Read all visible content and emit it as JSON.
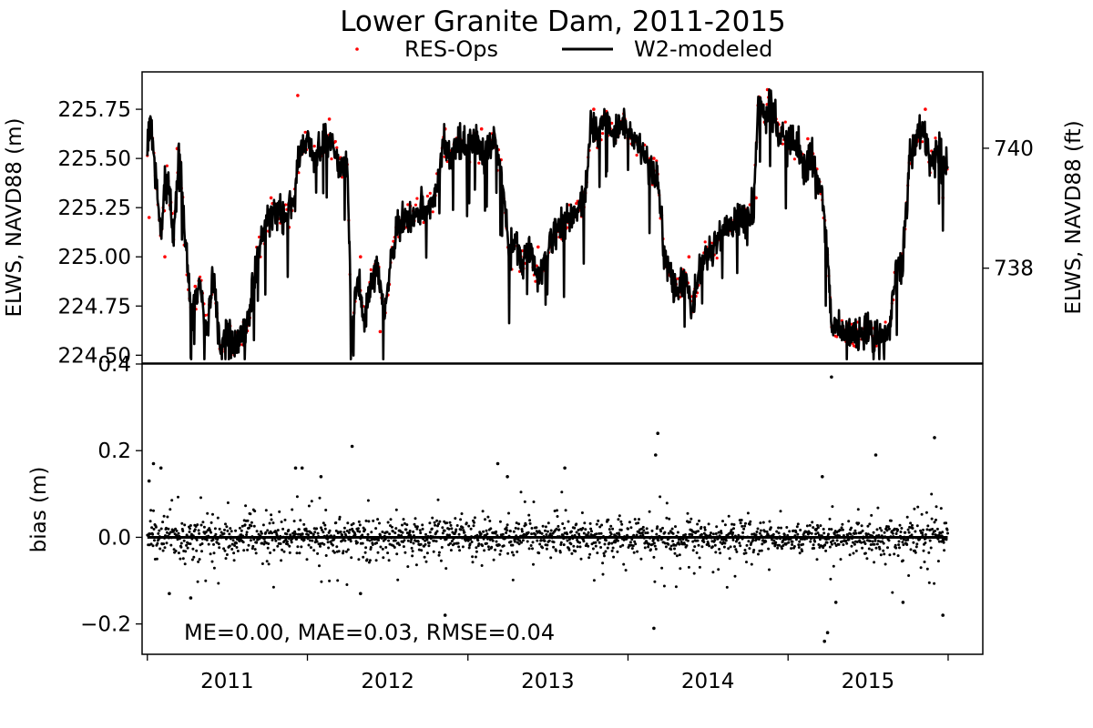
{
  "chart_data": {
    "type": "line",
    "title": "Lower Granite Dam, 2011-2015",
    "legend": {
      "placement": "top-center",
      "entries": [
        {
          "name": "RES-Ops",
          "marker": "dot",
          "color": "#ff0000"
        },
        {
          "name": "W2-modeled",
          "marker": "line",
          "color": "#000000"
        }
      ]
    },
    "x_axis": {
      "type": "date",
      "range": [
        "2010-12-20",
        "2016-03-20"
      ],
      "tick_marks": [
        "2011-01-01",
        "2012-01-01",
        "2013-01-01",
        "2014-01-01",
        "2015-01-01",
        "2016-01-01"
      ],
      "labels": [
        {
          "text": "2011",
          "date": "2011-07-02"
        },
        {
          "text": "2012",
          "date": "2012-07-02"
        },
        {
          "text": "2013",
          "date": "2013-07-02"
        },
        {
          "text": "2014",
          "date": "2014-07-02"
        },
        {
          "text": "2015",
          "date": "2015-07-02"
        }
      ]
    },
    "top_panel": {
      "ylabel": "ELWS, NAVD88 (m)",
      "ylim": [
        224.46,
        225.94
      ],
      "yticks": [
        {
          "value": 224.5,
          "label": "224.50"
        },
        {
          "value": 224.75,
          "label": "224.75"
        },
        {
          "value": 225.0,
          "label": "225.00"
        },
        {
          "value": 225.25,
          "label": "225.25"
        },
        {
          "value": 225.5,
          "label": "225.50"
        },
        {
          "value": 225.75,
          "label": "225.75"
        }
      ],
      "secondary_ylabel": "ELWS, NAVD88 (ft)",
      "secondary_yticks": [
        {
          "value": 738,
          "label": "738"
        },
        {
          "value": 740,
          "label": "740"
        }
      ],
      "series": [
        {
          "name": "W2-modeled",
          "color": "#000000",
          "points": [
            [
              "2011-01-01",
              225.55
            ],
            [
              "2011-01-10",
              225.7
            ],
            [
              "2011-01-20",
              225.4
            ],
            [
              "2011-02-01",
              225.1
            ],
            [
              "2011-02-15",
              225.45
            ],
            [
              "2011-03-01",
              225.1
            ],
            [
              "2011-03-15",
              225.55
            ],
            [
              "2011-04-01",
              224.95
            ],
            [
              "2011-04-15",
              224.7
            ],
            [
              "2011-05-01",
              224.9
            ],
            [
              "2011-05-15",
              224.6
            ],
            [
              "2011-06-01",
              224.9
            ],
            [
              "2011-06-15",
              224.55
            ],
            [
              "2011-07-01",
              224.6
            ],
            [
              "2011-07-20",
              224.55
            ],
            [
              "2011-08-05",
              224.6
            ],
            [
              "2011-08-20",
              224.65
            ],
            [
              "2011-09-01",
              224.95
            ],
            [
              "2011-09-15",
              225.05
            ],
            [
              "2011-10-01",
              225.2
            ],
            [
              "2011-10-20",
              225.25
            ],
            [
              "2011-11-10",
              225.2
            ],
            [
              "2011-12-01",
              225.3
            ],
            [
              "2011-12-15",
              225.55
            ],
            [
              "2012-01-01",
              225.6
            ],
            [
              "2012-01-20",
              225.5
            ],
            [
              "2012-02-10",
              225.6
            ],
            [
              "2012-03-01",
              225.55
            ],
            [
              "2012-03-20",
              225.45
            ],
            [
              "2012-04-01",
              225.5
            ],
            [
              "2012-04-10",
              224.6
            ],
            [
              "2012-04-25",
              224.9
            ],
            [
              "2012-05-10",
              224.65
            ],
            [
              "2012-05-25",
              224.9
            ],
            [
              "2012-06-10",
              224.95
            ],
            [
              "2012-06-25",
              224.7
            ],
            [
              "2012-07-10",
              225.0
            ],
            [
              "2012-07-25",
              225.15
            ],
            [
              "2012-08-15",
              225.2
            ],
            [
              "2012-09-10",
              225.22
            ],
            [
              "2012-10-01",
              225.25
            ],
            [
              "2012-10-20",
              225.3
            ],
            [
              "2012-11-05",
              225.6
            ],
            [
              "2012-11-20",
              225.5
            ],
            [
              "2012-12-10",
              225.6
            ],
            [
              "2013-01-01",
              225.55
            ],
            [
              "2013-01-20",
              225.6
            ],
            [
              "2013-02-10",
              225.5
            ],
            [
              "2013-03-01",
              225.6
            ],
            [
              "2013-03-20",
              225.4
            ],
            [
              "2013-04-05",
              225.0
            ],
            [
              "2013-04-20",
              225.1
            ],
            [
              "2013-05-05",
              224.95
            ],
            [
              "2013-05-20",
              225.05
            ],
            [
              "2013-06-05",
              224.9
            ],
            [
              "2013-06-25",
              224.95
            ],
            [
              "2013-07-10",
              225.1
            ],
            [
              "2013-07-30",
              225.15
            ],
            [
              "2013-08-20",
              225.2
            ],
            [
              "2013-09-10",
              225.25
            ],
            [
              "2013-09-25",
              225.3
            ],
            [
              "2013-10-10",
              225.7
            ],
            [
              "2013-10-25",
              225.6
            ],
            [
              "2013-11-10",
              225.7
            ],
            [
              "2013-12-01",
              225.6
            ],
            [
              "2013-12-20",
              225.7
            ],
            [
              "2014-01-10",
              225.6
            ],
            [
              "2014-02-01",
              225.55
            ],
            [
              "2014-02-20",
              225.45
            ],
            [
              "2014-03-10",
              225.4
            ],
            [
              "2014-03-25",
              225.0
            ],
            [
              "2014-04-10",
              224.9
            ],
            [
              "2014-04-25",
              224.8
            ],
            [
              "2014-05-10",
              224.95
            ],
            [
              "2014-05-25",
              224.75
            ],
            [
              "2014-06-10",
              224.9
            ],
            [
              "2014-06-25",
              225.0
            ],
            [
              "2014-07-10",
              225.05
            ],
            [
              "2014-07-25",
              225.1
            ],
            [
              "2014-08-15",
              225.15
            ],
            [
              "2014-09-10",
              225.2
            ],
            [
              "2014-10-01",
              225.22
            ],
            [
              "2014-10-15",
              225.25
            ],
            [
              "2014-10-25",
              225.8
            ],
            [
              "2014-11-10",
              225.7
            ],
            [
              "2014-11-25",
              225.8
            ],
            [
              "2014-12-10",
              225.65
            ],
            [
              "2015-01-01",
              225.6
            ],
            [
              "2015-01-20",
              225.55
            ],
            [
              "2015-02-10",
              225.45
            ],
            [
              "2015-03-01",
              225.5
            ],
            [
              "2015-03-20",
              225.3
            ],
            [
              "2015-04-01",
              225.0
            ],
            [
              "2015-04-10",
              224.65
            ],
            [
              "2015-05-01",
              224.62
            ],
            [
              "2015-06-01",
              224.6
            ],
            [
              "2015-07-01",
              224.63
            ],
            [
              "2015-08-01",
              224.6
            ],
            [
              "2015-08-20",
              224.62
            ],
            [
              "2015-09-01",
              224.9
            ],
            [
              "2015-09-20",
              225.0
            ],
            [
              "2015-10-05",
              225.5
            ],
            [
              "2015-10-20",
              225.6
            ],
            [
              "2015-11-05",
              225.65
            ],
            [
              "2015-11-20",
              225.5
            ],
            [
              "2015-12-10",
              225.55
            ],
            [
              "2015-12-31",
              225.45
            ]
          ]
        },
        {
          "name": "RES-Ops",
          "color": "#ff0000",
          "note_points": [
            [
              "2011-01-05",
              225.2
            ],
            [
              "2011-02-10",
              225.0
            ],
            [
              "2011-03-10",
              225.55
            ],
            [
              "2011-04-20",
              224.85
            ],
            [
              "2011-06-20",
              224.55
            ],
            [
              "2011-10-10",
              225.3
            ],
            [
              "2011-11-20",
              225.15
            ],
            [
              "2011-12-10",
              225.82
            ],
            [
              "2012-02-20",
              225.7
            ],
            [
              "2012-05-01",
              225.0
            ],
            [
              "2012-06-15",
              224.62
            ],
            [
              "2012-08-20",
              225.2
            ],
            [
              "2012-11-10",
              225.65
            ],
            [
              "2013-02-01",
              225.65
            ],
            [
              "2013-06-10",
              225.05
            ],
            [
              "2013-10-15",
              225.75
            ],
            [
              "2014-03-01",
              225.5
            ],
            [
              "2014-05-20",
              225.0
            ],
            [
              "2014-10-20",
              225.3
            ],
            [
              "2014-11-15",
              225.85
            ],
            [
              "2015-02-15",
              225.6
            ],
            [
              "2015-05-15",
              224.66
            ],
            [
              "2015-08-10",
              224.58
            ],
            [
              "2015-11-10",
              225.75
            ],
            [
              "2015-12-20",
              225.3
            ]
          ]
        }
      ]
    },
    "bottom_panel": {
      "ylabel": "bias (m)",
      "ylim": [
        -0.27,
        0.4
      ],
      "yticks": [
        {
          "value": -0.2,
          "label": "−0.2"
        },
        {
          "value": 0.0,
          "label": "0.0"
        },
        {
          "value": 0.2,
          "label": "0.2"
        },
        {
          "value": 0.4,
          "label": "0.4"
        }
      ],
      "zero_line_range": [
        "2011-01-01",
        "2015-12-31"
      ],
      "bias_spread_m": 0.05,
      "outliers": [
        [
          "2011-01-05",
          0.13
        ],
        [
          "2011-01-15",
          0.17
        ],
        [
          "2011-02-01",
          0.16
        ],
        [
          "2011-02-20",
          -0.13
        ],
        [
          "2011-04-10",
          -0.14
        ],
        [
          "2011-12-05",
          0.16
        ],
        [
          "2011-12-20",
          0.16
        ],
        [
          "2012-02-01",
          0.14
        ],
        [
          "2012-04-12",
          0.21
        ],
        [
          "2012-05-01",
          -0.13
        ],
        [
          "2012-11-10",
          -0.18
        ],
        [
          "2013-03-10",
          0.17
        ],
        [
          "2013-04-01",
          0.14
        ],
        [
          "2013-08-10",
          0.16
        ],
        [
          "2014-03-01",
          -0.21
        ],
        [
          "2014-03-05",
          0.19
        ],
        [
          "2014-03-10",
          0.24
        ],
        [
          "2015-03-20",
          0.14
        ],
        [
          "2015-03-25",
          -0.24
        ],
        [
          "2015-04-01",
          -0.22
        ],
        [
          "2015-04-10",
          0.37
        ],
        [
          "2015-04-20",
          -0.15
        ],
        [
          "2015-07-20",
          0.19
        ],
        [
          "2015-09-20",
          -0.15
        ],
        [
          "2015-12-01",
          0.23
        ],
        [
          "2015-12-20",
          -0.18
        ]
      ]
    },
    "annotation": "ME=0.00, MAE=0.03, RMSE=0.04"
  }
}
